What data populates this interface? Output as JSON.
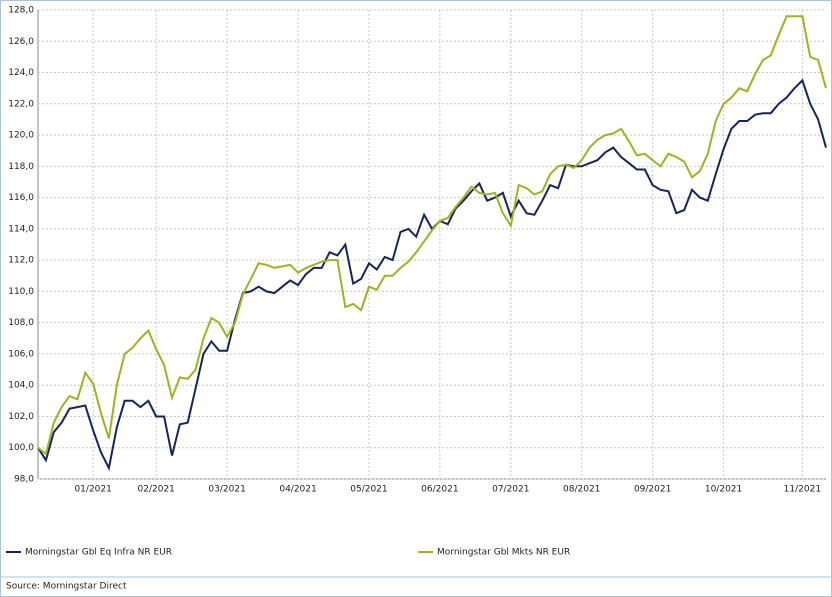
{
  "chart_data": {
    "type": "line",
    "categories": [
      null,
      null,
      null,
      null,
      null,
      null,
      null,
      "01/2021",
      null,
      null,
      null,
      null,
      null,
      null,
      null,
      "02/2021",
      null,
      null,
      null,
      null,
      null,
      null,
      null,
      null,
      "03/2021",
      null,
      null,
      null,
      null,
      null,
      null,
      null,
      null,
      "04/2021",
      null,
      null,
      null,
      null,
      null,
      null,
      null,
      null,
      "05/2021",
      null,
      null,
      null,
      null,
      null,
      null,
      null,
      null,
      "06/2021",
      null,
      null,
      null,
      null,
      null,
      null,
      null,
      null,
      "07/2021",
      null,
      null,
      null,
      null,
      null,
      null,
      null,
      null,
      "08/2021",
      null,
      null,
      null,
      null,
      null,
      null,
      null,
      null,
      "09/2021",
      null,
      null,
      null,
      null,
      null,
      null,
      null,
      null,
      "10/2021",
      null,
      null,
      null,
      null,
      null,
      null,
      null,
      null,
      null,
      "11/2021",
      null,
      null,
      null
    ],
    "series": [
      {
        "name": "Morningstar Gbl Eq Infra NR EUR",
        "color": "#16235e",
        "values": [
          100.0,
          99.2,
          101.0,
          101.6,
          102.5,
          102.6,
          102.7,
          101.1,
          99.7,
          98.7,
          101.3,
          103.0,
          103.0,
          102.6,
          103.0,
          102.0,
          102.0,
          99.5,
          101.5,
          101.6,
          103.8,
          106.0,
          106.8,
          106.2,
          106.2,
          108.2,
          109.9,
          110.0,
          110.3,
          110.0,
          109.9,
          110.3,
          110.7,
          110.4,
          111.1,
          111.5,
          111.5,
          112.5,
          112.3,
          113.0,
          110.5,
          110.8,
          111.8,
          111.4,
          112.2,
          112.0,
          113.8,
          114.0,
          113.5,
          114.9,
          114.0,
          114.5,
          114.3,
          115.3,
          115.8,
          116.4,
          116.9,
          115.8,
          116.0,
          116.3,
          114.8,
          115.8,
          115.0,
          114.9,
          115.8,
          116.8,
          116.6,
          118.1,
          118.0,
          118.0,
          118.2,
          118.4,
          118.9,
          119.2,
          118.6,
          118.2,
          117.8,
          117.8,
          116.8,
          116.5,
          116.4,
          115.0,
          115.2,
          116.5,
          116.0,
          115.8,
          117.5,
          119.1,
          120.4,
          120.9,
          120.9,
          121.3,
          121.4,
          121.4,
          122.0,
          122.4,
          123.0,
          123.5,
          122.0,
          121.0,
          119.2
        ]
      },
      {
        "name": "Morningstar Gbl Mkts NR EUR",
        "color": "#9cb51e",
        "values": [
          100.0,
          99.6,
          101.6,
          102.6,
          103.3,
          103.1,
          104.8,
          104.1,
          102.2,
          100.6,
          104.0,
          106.0,
          106.4,
          107.0,
          107.5,
          106.3,
          105.3,
          103.2,
          104.5,
          104.4,
          105.0,
          107.0,
          108.3,
          108.0,
          107.1,
          108.0,
          109.8,
          110.8,
          111.8,
          111.7,
          111.5,
          111.6,
          111.7,
          111.2,
          111.5,
          111.7,
          111.9,
          112.0,
          112.0,
          109.0,
          109.2,
          108.8,
          110.3,
          110.1,
          111.0,
          111.0,
          111.5,
          111.9,
          112.5,
          113.2,
          113.9,
          114.5,
          114.7,
          115.4,
          116.0,
          116.7,
          116.3,
          116.2,
          116.3,
          115.0,
          114.2,
          116.8,
          116.6,
          116.2,
          116.4,
          117.5,
          118.0,
          118.1,
          117.9,
          118.4,
          119.2,
          119.7,
          120.0,
          120.1,
          120.4,
          119.6,
          118.7,
          118.8,
          118.4,
          118.0,
          118.8,
          118.6,
          118.3,
          117.3,
          117.7,
          118.8,
          120.9,
          122.0,
          122.4,
          123.0,
          122.8,
          123.9,
          124.8,
          125.1,
          126.4,
          127.6,
          127.6,
          127.6,
          125.0,
          124.8,
          123.0
        ]
      }
    ],
    "ylim": [
      98,
      128
    ],
    "yticks": [
      {
        "value": 98,
        "label": "98,0"
      },
      {
        "value": 100,
        "label": "100,0"
      },
      {
        "value": 102,
        "label": "102,0"
      },
      {
        "value": 104,
        "label": "104,0"
      },
      {
        "value": 106,
        "label": "106,0"
      },
      {
        "value": 108,
        "label": "108,0"
      },
      {
        "value": 110,
        "label": "110,0"
      },
      {
        "value": 112,
        "label": "112,0"
      },
      {
        "value": 114,
        "label": "114,0"
      },
      {
        "value": 116,
        "label": "116,0"
      },
      {
        "value": 118,
        "label": "118,0"
      },
      {
        "value": 120,
        "label": "120,0"
      },
      {
        "value": 122,
        "label": "122,0"
      },
      {
        "value": 124,
        "label": "124,0"
      },
      {
        "value": 126,
        "label": "126,0"
      },
      {
        "value": 128,
        "label": "128,0"
      }
    ],
    "grid": true,
    "source": "Source: Morningstar Direct"
  }
}
